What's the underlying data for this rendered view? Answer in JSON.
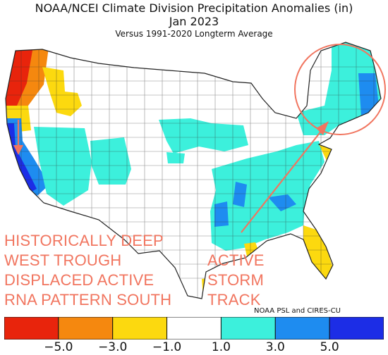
{
  "header": {
    "title": "NOAA/NCEI Climate Division Precipitation Anomalies (in)",
    "date": "Jan 2023",
    "subtitle": "Versus 1991-2020 Longterm Average"
  },
  "annotations": {
    "west_lines": [
      "HISTORICALLY DEEP",
      "WEST TROUGH",
      "DISPLACED ACTIVE",
      "RNA PATTERN SOUTH"
    ],
    "storm_lines": [
      "ACTIVE",
      "STORM",
      "TRACK"
    ],
    "color": "#f1755f"
  },
  "credit": "NOAA PSL and CIRES-CU",
  "legend": {
    "bins": [
      {
        "color": "#e8240c"
      },
      {
        "color": "#f5880f"
      },
      {
        "color": "#fcd90f"
      },
      {
        "color": "#ffffff"
      },
      {
        "color": "#3cf0dc"
      },
      {
        "color": "#1e8cf0"
      },
      {
        "color": "#1c2de6"
      }
    ],
    "ticks": [
      "−5.0",
      "−3.0",
      "−1.0",
      "1.0",
      "3.0",
      "5.0"
    ]
  },
  "palette": {
    "very_dry": "#e8240c",
    "dry": "#f5880f",
    "slightly_dry": "#fcd90f",
    "normal": "#ffffff",
    "slightly_wet": "#3cf0dc",
    "wet": "#1e8cf0",
    "very_wet": "#1c2de6",
    "annotation": "#f1755f"
  }
}
